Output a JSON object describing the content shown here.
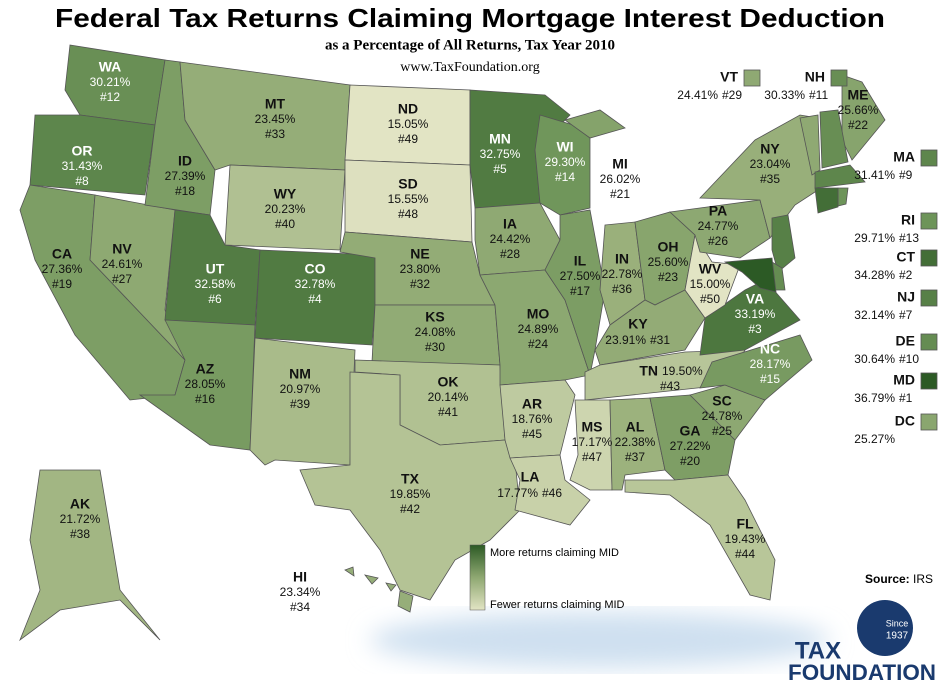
{
  "header": {
    "title": "Federal Tax Returns Claiming Mortgage Interest Deduction",
    "subtitle": "as a Percentage of All Returns, Tax Year 2010",
    "url": "www.TaxFoundation.org"
  },
  "states": [
    {
      "abbr": "WA",
      "value": 30.21,
      "label": "30.21%",
      "rank": "#12"
    },
    {
      "abbr": "OR",
      "value": 31.43,
      "label": "31.43%",
      "rank": "#8"
    },
    {
      "abbr": "CA",
      "value": 27.36,
      "label": "27.36%",
      "rank": "#19"
    },
    {
      "abbr": "NV",
      "value": 24.61,
      "label": "24.61%",
      "rank": "#27"
    },
    {
      "abbr": "ID",
      "value": 27.39,
      "label": "27.39%",
      "rank": "#18"
    },
    {
      "abbr": "MT",
      "value": 23.45,
      "label": "23.45%",
      "rank": "#33"
    },
    {
      "abbr": "WY",
      "value": 20.23,
      "label": "20.23%",
      "rank": "#40"
    },
    {
      "abbr": "UT",
      "value": 32.58,
      "label": "32.58%",
      "rank": "#6"
    },
    {
      "abbr": "CO",
      "value": 32.78,
      "label": "32.78%",
      "rank": "#4"
    },
    {
      "abbr": "AZ",
      "value": 28.05,
      "label": "28.05%",
      "rank": "#16"
    },
    {
      "abbr": "NM",
      "value": 20.97,
      "label": "20.97%",
      "rank": "#39"
    },
    {
      "abbr": "ND",
      "value": 15.05,
      "label": "15.05%",
      "rank": "#49"
    },
    {
      "abbr": "SD",
      "value": 15.55,
      "label": "15.55%",
      "rank": "#48"
    },
    {
      "abbr": "NE",
      "value": 23.8,
      "label": "23.80%",
      "rank": "#32"
    },
    {
      "abbr": "KS",
      "value": 24.08,
      "label": "24.08%",
      "rank": "#30"
    },
    {
      "abbr": "OK",
      "value": 20.14,
      "label": "20.14%",
      "rank": "#41"
    },
    {
      "abbr": "TX",
      "value": 19.85,
      "label": "19.85%",
      "rank": "#42"
    },
    {
      "abbr": "MN",
      "value": 32.75,
      "label": "32.75%",
      "rank": "#5"
    },
    {
      "abbr": "IA",
      "value": 24.42,
      "label": "24.42%",
      "rank": "#28"
    },
    {
      "abbr": "MO",
      "value": 24.89,
      "label": "24.89%",
      "rank": "#24"
    },
    {
      "abbr": "AR",
      "value": 18.76,
      "label": "18.76%",
      "rank": "#45"
    },
    {
      "abbr": "LA",
      "value": 17.77,
      "label": "17.77%",
      "rank": "#46"
    },
    {
      "abbr": "WI",
      "value": 29.3,
      "label": "29.30%",
      "rank": "#14"
    },
    {
      "abbr": "IL",
      "value": 27.5,
      "label": "27.50%",
      "rank": "#17"
    },
    {
      "abbr": "MI",
      "value": 26.02,
      "label": "26.02%",
      "rank": "#21"
    },
    {
      "abbr": "IN",
      "value": 22.78,
      "label": "22.78%",
      "rank": "#36"
    },
    {
      "abbr": "OH",
      "value": 25.6,
      "label": "25.60%",
      "rank": "#23"
    },
    {
      "abbr": "KY",
      "value": 23.91,
      "label": "23.91%",
      "rank": "#31"
    },
    {
      "abbr": "TN",
      "value": 19.5,
      "label": "19.50%",
      "rank": "#43"
    },
    {
      "abbr": "MS",
      "value": 17.17,
      "label": "17.17%",
      "rank": "#47"
    },
    {
      "abbr": "AL",
      "value": 22.38,
      "label": "22.38%",
      "rank": "#37"
    },
    {
      "abbr": "GA",
      "value": 27.22,
      "label": "27.22%",
      "rank": "#20"
    },
    {
      "abbr": "FL",
      "value": 19.43,
      "label": "19.43%",
      "rank": "#44"
    },
    {
      "abbr": "SC",
      "value": 24.78,
      "label": "24.78%",
      "rank": "#25"
    },
    {
      "abbr": "NC",
      "value": 28.17,
      "label": "28.17%",
      "rank": "#15"
    },
    {
      "abbr": "VA",
      "value": 33.19,
      "label": "33.19%",
      "rank": "#3"
    },
    {
      "abbr": "WV",
      "value": 15.0,
      "label": "15.00%",
      "rank": "#50"
    },
    {
      "abbr": "PA",
      "value": 24.77,
      "label": "24.77%",
      "rank": "#26"
    },
    {
      "abbr": "NY",
      "value": 23.04,
      "label": "23.04%",
      "rank": "#35"
    },
    {
      "abbr": "ME",
      "value": 25.66,
      "label": "25.66%",
      "rank": "#22"
    },
    {
      "abbr": "AK",
      "value": 21.72,
      "label": "21.72%",
      "rank": "#38"
    },
    {
      "abbr": "HI",
      "value": 23.34,
      "label": "23.34%",
      "rank": "#34"
    },
    {
      "abbr": "VT",
      "value": 24.41,
      "label": "24.41%",
      "rank": "#29"
    },
    {
      "abbr": "NH",
      "value": 30.33,
      "label": "30.33%",
      "rank": "#11"
    },
    {
      "abbr": "MA",
      "value": 31.41,
      "label": "31.41%",
      "rank": "#9"
    },
    {
      "abbr": "RI",
      "value": 29.71,
      "label": "29.71%",
      "rank": "#13"
    },
    {
      "abbr": "CT",
      "value": 34.28,
      "label": "34.28%",
      "rank": "#2"
    },
    {
      "abbr": "NJ",
      "value": 32.14,
      "label": "32.14%",
      "rank": "#7"
    },
    {
      "abbr": "DE",
      "value": 30.64,
      "label": "30.64%",
      "rank": "#10"
    },
    {
      "abbr": "MD",
      "value": 36.79,
      "label": "36.79%",
      "rank": "#1"
    },
    {
      "abbr": "DC",
      "value": 25.27,
      "label": "25.27%"
    }
  ],
  "legend": {
    "high": "More returns claiming MID",
    "low": "Fewer returns claiming MID"
  },
  "source": {
    "label": "Source:",
    "text": "IRS"
  },
  "logo": {
    "since": "Since",
    "year": "1937",
    "name1": "TAX",
    "name2": "FOUNDATION"
  }
}
